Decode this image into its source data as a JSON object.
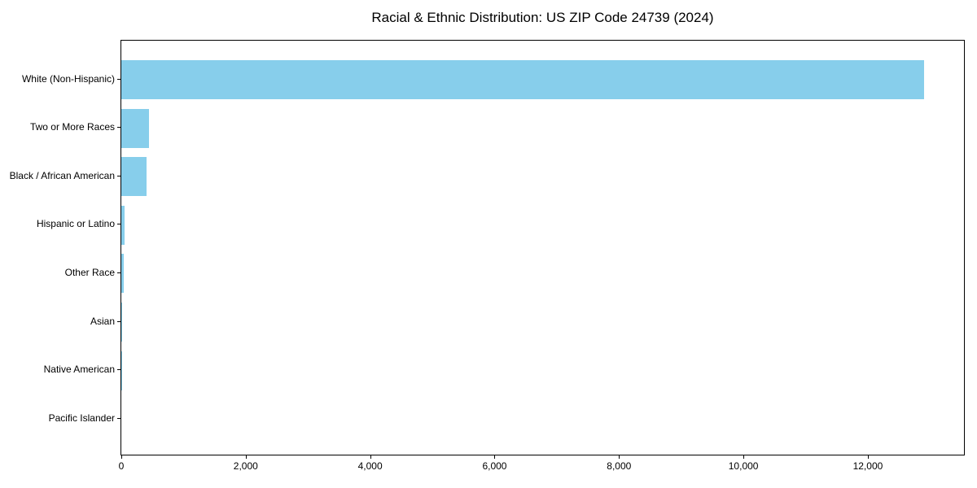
{
  "page": {
    "background": "#ffffff"
  },
  "chart_data": {
    "type": "bar",
    "orientation": "horizontal",
    "title": "Racial & Ethnic Distribution: US ZIP Code 24739 (2024)",
    "categories": [
      "White (Non-Hispanic)",
      "Two or More Races",
      "Black / African American",
      "Hispanic or Latino",
      "Other Race",
      "Asian",
      "Native American",
      "Pacific Islander"
    ],
    "values": [
      12900,
      450,
      400,
      55,
      45,
      12,
      3,
      0
    ],
    "bar_color": "#87CEEB",
    "text_color": "#000000",
    "xlabel": "",
    "ylabel": "",
    "xlim": [
      0,
      13545
    ],
    "x_ticks": [
      0,
      2000,
      4000,
      6000,
      8000,
      10000,
      12000
    ],
    "x_tick_labels": [
      "0",
      "2,000",
      "4,000",
      "6,000",
      "8,000",
      "10,000",
      "12,000"
    ],
    "grid": false,
    "legend_position": "none"
  }
}
